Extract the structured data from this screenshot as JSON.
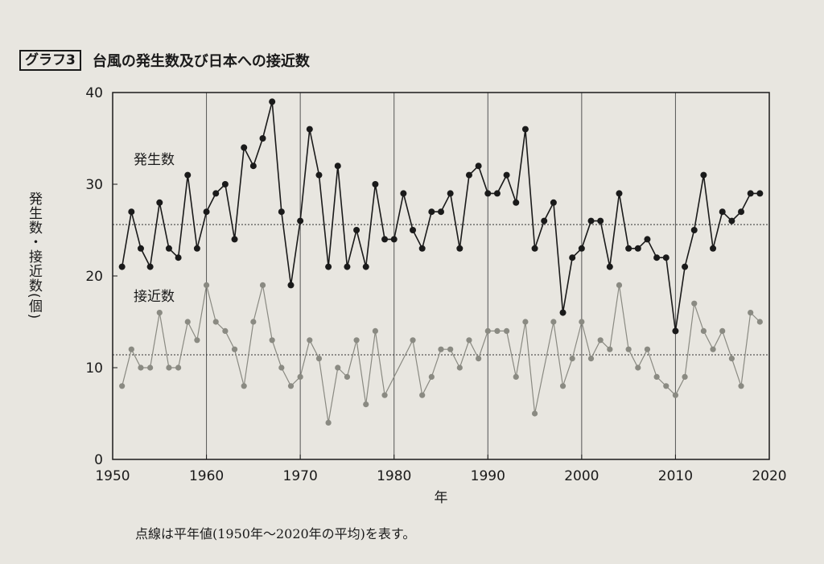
{
  "header": {
    "badge": "グラフ3",
    "title": "台風の発生数及び日本への接近数"
  },
  "note": "点線は平年値(1950年〜2020年の平均)を表す。",
  "colors": {
    "occurrence": "#1a1a1a",
    "approach": "#8a8a82",
    "grid": "#555555",
    "background": "#e8e6e0"
  },
  "chart_data": {
    "type": "line",
    "title": "台風の発生数及び日本への接近数",
    "xlabel": "年",
    "ylabel": "発生数・接近数(個)",
    "xlim": [
      1950,
      2020
    ],
    "ylim": [
      0,
      40
    ],
    "x_ticks": [
      1950,
      1960,
      1970,
      1980,
      1990,
      2000,
      2010,
      2020
    ],
    "y_ticks": [
      0,
      10,
      20,
      30,
      40
    ],
    "grid": "vertical lines every 10 years",
    "series": [
      {
        "name": "発生数",
        "color": "#1a1a1a",
        "average": 25.6,
        "points": [
          [
            1951,
            21
          ],
          [
            1952,
            27
          ],
          [
            1953,
            23
          ],
          [
            1954,
            21
          ],
          [
            1955,
            28
          ],
          [
            1956,
            23
          ],
          [
            1957,
            22
          ],
          [
            1958,
            31
          ],
          [
            1959,
            23
          ],
          [
            1960,
            27
          ],
          [
            1961,
            29
          ],
          [
            1962,
            30
          ],
          [
            1963,
            24
          ],
          [
            1964,
            34
          ],
          [
            1965,
            32
          ],
          [
            1966,
            35
          ],
          [
            1967,
            39
          ],
          [
            1968,
            27
          ],
          [
            1969,
            19
          ],
          [
            1970,
            26
          ],
          [
            1971,
            36
          ],
          [
            1972,
            31
          ],
          [
            1973,
            21
          ],
          [
            1974,
            32
          ],
          [
            1975,
            21
          ],
          [
            1976,
            25
          ],
          [
            1977,
            21
          ],
          [
            1978,
            30
          ],
          [
            1979,
            24
          ],
          [
            1980,
            24
          ],
          [
            1981,
            29
          ],
          [
            1982,
            25
          ],
          [
            1983,
            23
          ],
          [
            1984,
            27
          ],
          [
            1985,
            27
          ],
          [
            1986,
            29
          ],
          [
            1987,
            23
          ],
          [
            1988,
            31
          ],
          [
            1989,
            32
          ],
          [
            1990,
            29
          ],
          [
            1991,
            29
          ],
          [
            1992,
            31
          ],
          [
            1993,
            28
          ],
          [
            1994,
            36
          ],
          [
            1995,
            23
          ],
          [
            1996,
            26
          ],
          [
            1997,
            28
          ],
          [
            1998,
            16
          ],
          [
            1999,
            22
          ],
          [
            2000,
            23
          ],
          [
            2001,
            26
          ],
          [
            2002,
            26
          ],
          [
            2003,
            21
          ],
          [
            2004,
            29
          ],
          [
            2005,
            23
          ],
          [
            2006,
            23
          ],
          [
            2007,
            24
          ],
          [
            2008,
            22
          ],
          [
            2009,
            22
          ],
          [
            2010,
            14
          ],
          [
            2011,
            21
          ],
          [
            2012,
            25
          ],
          [
            2013,
            31
          ],
          [
            2014,
            23
          ],
          [
            2015,
            27
          ],
          [
            2016,
            26
          ],
          [
            2017,
            27
          ],
          [
            2018,
            29
          ],
          [
            2019,
            29
          ]
        ]
      },
      {
        "name": "接近数",
        "color": "#8a8a82",
        "average": 11.4,
        "points": [
          [
            1951,
            8
          ],
          [
            1952,
            12
          ],
          [
            1953,
            10
          ],
          [
            1954,
            10
          ],
          [
            1955,
            16
          ],
          [
            1956,
            10
          ],
          [
            1957,
            10
          ],
          [
            1958,
            15
          ],
          [
            1959,
            13
          ],
          [
            1960,
            19
          ],
          [
            1961,
            15
          ],
          [
            1962,
            14
          ],
          [
            1963,
            12
          ],
          [
            1964,
            8
          ],
          [
            1965,
            15
          ],
          [
            1966,
            19
          ],
          [
            1967,
            13
          ],
          [
            1968,
            10
          ],
          [
            1969,
            8
          ],
          [
            1970,
            9
          ],
          [
            1971,
            13
          ],
          [
            1972,
            11
          ],
          [
            1973,
            4
          ],
          [
            1974,
            10
          ],
          [
            1975,
            9
          ],
          [
            1976,
            13
          ],
          [
            1977,
            6
          ],
          [
            1978,
            14
          ],
          [
            1979,
            7
          ],
          [
            1982,
            13
          ],
          [
            1983,
            7
          ],
          [
            1984,
            9
          ],
          [
            1985,
            12
          ],
          [
            1986,
            12
          ],
          [
            1987,
            10
          ],
          [
            1988,
            13
          ],
          [
            1989,
            11
          ],
          [
            1990,
            14
          ],
          [
            1991,
            14
          ],
          [
            1992,
            14
          ],
          [
            1993,
            9
          ],
          [
            1994,
            15
          ],
          [
            1995,
            5
          ],
          [
            1997,
            15
          ],
          [
            1998,
            8
          ],
          [
            1999,
            11
          ],
          [
            2000,
            15
          ],
          [
            2001,
            11
          ],
          [
            2002,
            13
          ],
          [
            2003,
            12
          ],
          [
            2004,
            19
          ],
          [
            2005,
            12
          ],
          [
            2006,
            10
          ],
          [
            2007,
            12
          ],
          [
            2008,
            9
          ],
          [
            2009,
            8
          ],
          [
            2010,
            7
          ],
          [
            2011,
            9
          ],
          [
            2012,
            17
          ],
          [
            2013,
            14
          ],
          [
            2014,
            12
          ],
          [
            2015,
            14
          ],
          [
            2016,
            11
          ],
          [
            2017,
            8
          ],
          [
            2018,
            16
          ],
          [
            2019,
            15
          ]
        ]
      }
    ]
  }
}
